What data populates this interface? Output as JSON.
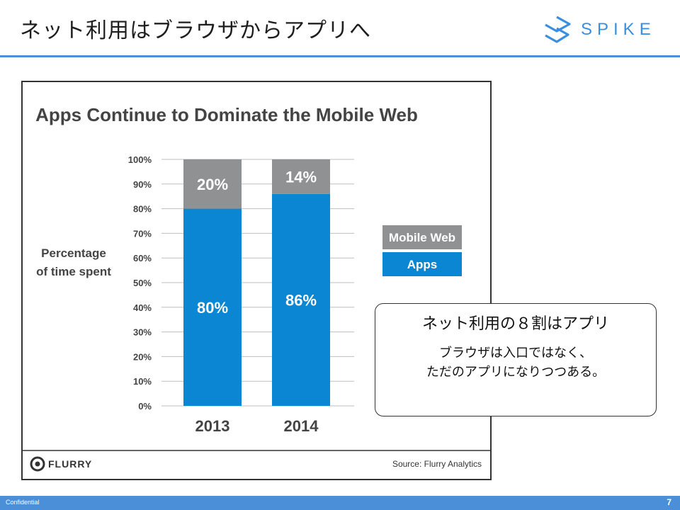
{
  "slide": {
    "title": "ネット利用はブラウザからアプリへ",
    "brand": "SPIKE",
    "accent_color": "#4a8fd8"
  },
  "chart_data": {
    "type": "bar",
    "stacked": true,
    "title": "Apps Continue to Dominate the Mobile Web",
    "ylabel": [
      "Percentage",
      "of time spent"
    ],
    "xlabel": "",
    "ylim": [
      0,
      100
    ],
    "ytick_labels": [
      "100%",
      "90%",
      "80%",
      "70%",
      "60%",
      "50%",
      "40%",
      "30%",
      "20%",
      "10%",
      "0%"
    ],
    "categories": [
      "2013",
      "2014"
    ],
    "series": [
      {
        "name": "Apps",
        "values": [
          80,
          86
        ],
        "labels": [
          "80%",
          "86%"
        ],
        "color": "#0a86d2"
      },
      {
        "name": "Mobile Web",
        "values": [
          20,
          14
        ],
        "labels": [
          "20%",
          "14%"
        ],
        "color": "#8f9193"
      }
    ],
    "legend": [
      "Mobile Web",
      "Apps"
    ],
    "legend_position": "right",
    "grid": true,
    "brand": "FLURRY",
    "source": "Source: Flurry Analytics"
  },
  "callout": {
    "heading": "ネット利用の８割はアプリ",
    "body_line1": "ブラウザは入口ではなく、",
    "body_line2": "ただのアプリになりつつある。"
  },
  "footer": {
    "label": "Confidential",
    "page": "7"
  }
}
